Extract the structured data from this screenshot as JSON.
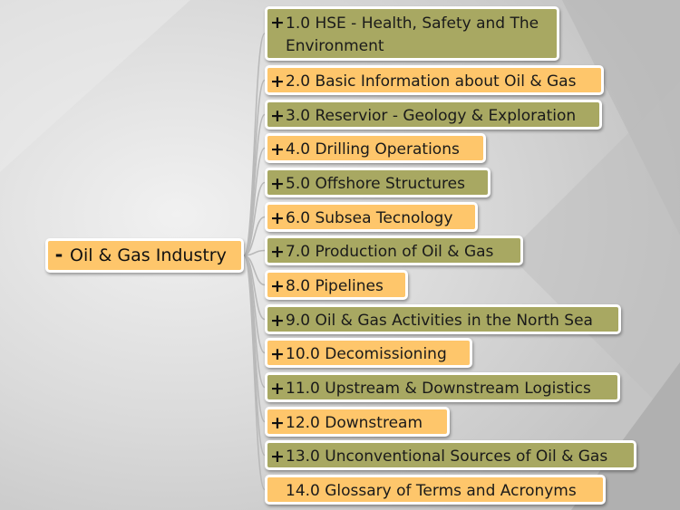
{
  "root": {
    "expander": "-",
    "label": "Oil & Gas Industry"
  },
  "topics": [
    {
      "expander": "+",
      "label": "1.0 HSE - Health, Safety and The Environment"
    },
    {
      "expander": "+",
      "label": "2.0 Basic Information about Oil & Gas"
    },
    {
      "expander": "+",
      "label": "3.0 Reservior - Geology & Exploration"
    },
    {
      "expander": "+",
      "label": "4.0 Drilling Operations"
    },
    {
      "expander": "+",
      "label": "5.0 Offshore Structures"
    },
    {
      "expander": "+",
      "label": "6.0 Subsea Tecnology"
    },
    {
      "expander": "+",
      "label": "7.0 Production of Oil & Gas"
    },
    {
      "expander": "+",
      "label": "8.0 Pipelines"
    },
    {
      "expander": "+",
      "label": "9.0 Oil & Gas Activities in the North Sea"
    },
    {
      "expander": "+",
      "label": "10.0 Decomissioning"
    },
    {
      "expander": "+",
      "label": "11.0 Upstream & Downstream Logistics"
    },
    {
      "expander": "+",
      "label": "12.0 Downstream"
    },
    {
      "expander": "+",
      "label": "13.0 Unconventional Sources of Oil & Gas"
    },
    {
      "expander": "",
      "label": "14.0 Glossary of Terms and Acronyms"
    }
  ],
  "colors": {
    "olive": "#a8a862",
    "amber": "#fec66b",
    "connector": "#b9b9b9"
  }
}
